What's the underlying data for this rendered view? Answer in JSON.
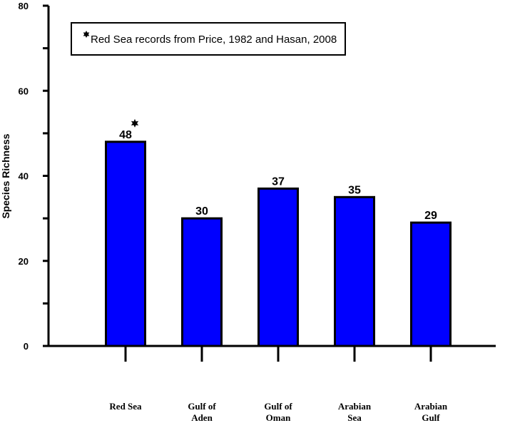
{
  "chart_data": {
    "type": "bar",
    "categories": [
      [
        "Red Sea"
      ],
      [
        "Gulf of",
        "Aden"
      ],
      [
        "Gulf of",
        "Oman"
      ],
      [
        "Arabian",
        "Sea"
      ],
      [
        "Arabian",
        "Gulf"
      ]
    ],
    "values": [
      48,
      30,
      37,
      35,
      29
    ],
    "data_labels": [
      "48",
      "30",
      "37",
      "35",
      "29"
    ],
    "ylabel": "Species Richness",
    "xlabel": "",
    "title": "",
    "ylim": [
      0,
      80
    ],
    "yticks": [
      0,
      20,
      40,
      60,
      80
    ],
    "ytick_labels": [
      "0",
      "20",
      "40",
      "60",
      "80"
    ],
    "bar_color": "#0000ff",
    "grid": false,
    "annotation": {
      "symbol": "*",
      "text": "Red Sea records from Price, 1982 and Hasan, 2008",
      "placement": "top-left"
    },
    "starred_category_index": 0
  }
}
